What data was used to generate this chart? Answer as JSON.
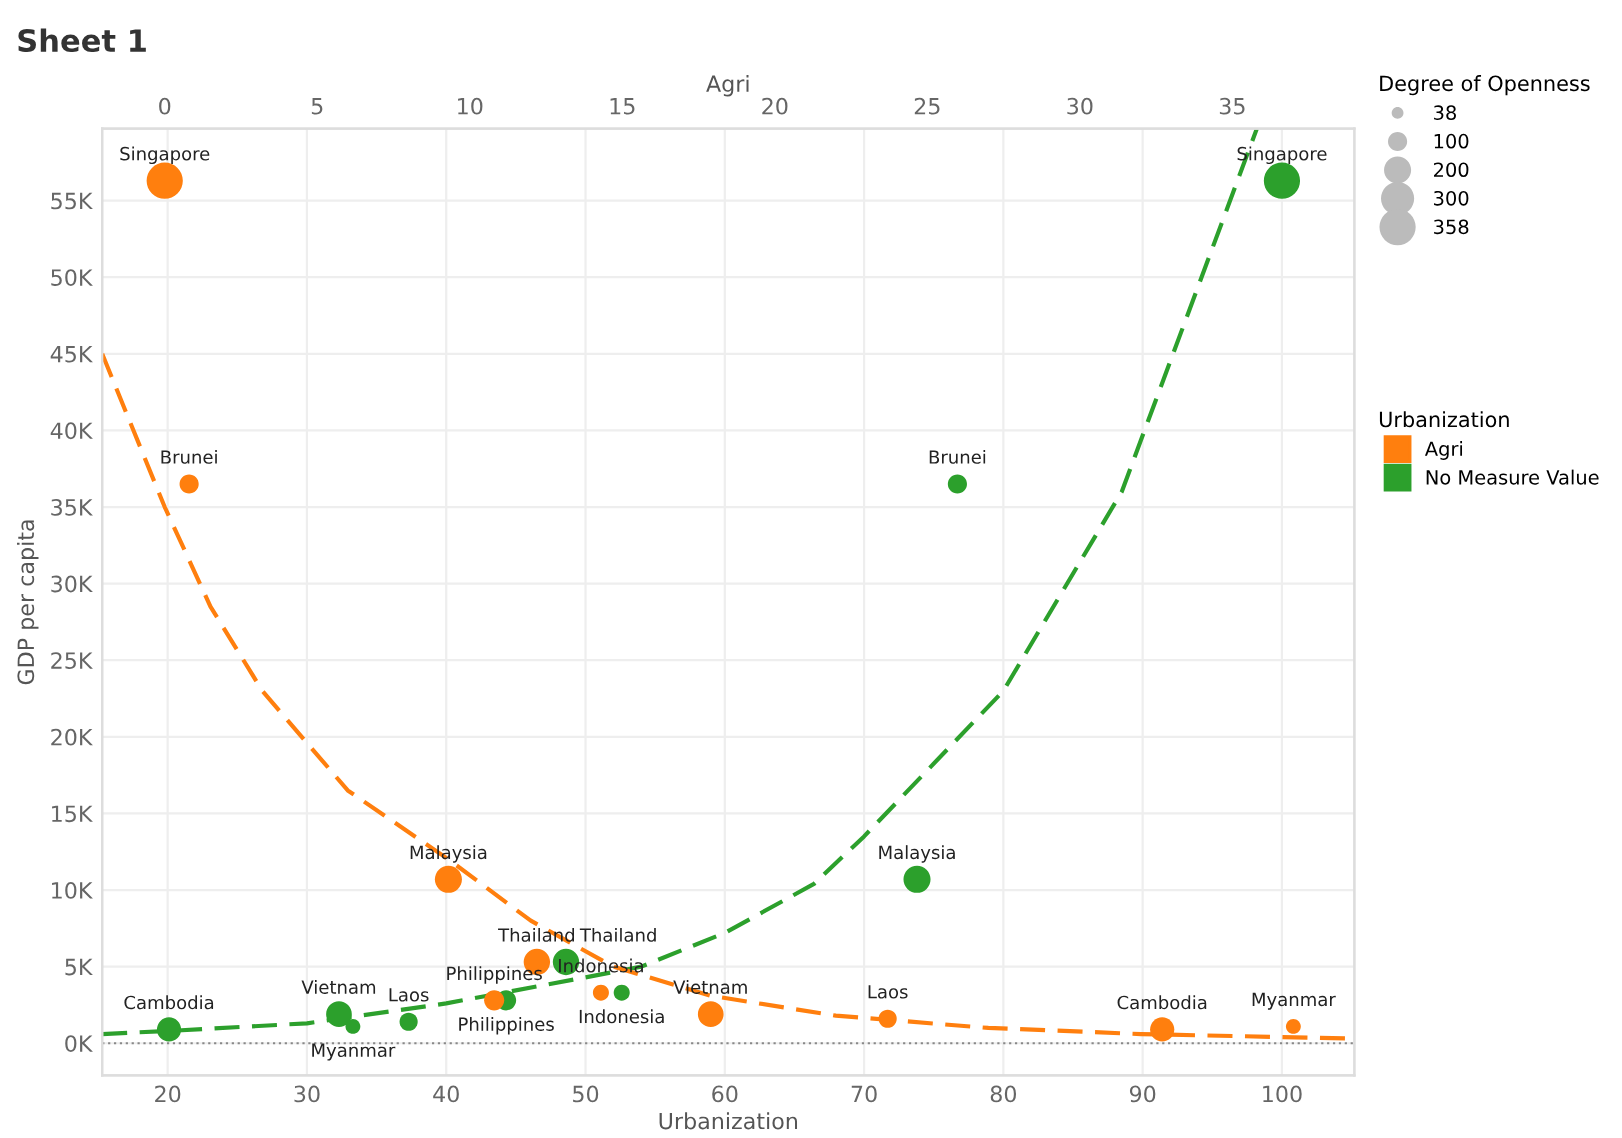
{
  "chart_data": {
    "type": "bubble",
    "title": "Sheet 1",
    "xlabel": "Urbanization",
    "x2label": "Agri",
    "ylabel": "GDP per capita",
    "legend_title": "Urbanization",
    "annotations": [
      "Degree of Openness"
    ],
    "xlim": [
      15.3,
      105.2
    ],
    "xticks": [
      20,
      30,
      40,
      50,
      60,
      70,
      80,
      90,
      100
    ],
    "x2lim": [
      -2.05,
      39
    ],
    "x2ticks": [
      0,
      5,
      10,
      15,
      20,
      25,
      30,
      35
    ],
    "ylim": [
      -2100,
      59700
    ],
    "yticks": [
      {
        "value": 0,
        "label": "0K"
      },
      {
        "value": 5000,
        "label": "5K"
      },
      {
        "value": 10000,
        "label": "10K"
      },
      {
        "value": 15000,
        "label": "15K"
      },
      {
        "value": 20000,
        "label": "20K"
      },
      {
        "value": 25000,
        "label": "25K"
      },
      {
        "value": 30000,
        "label": "30K"
      },
      {
        "value": 35000,
        "label": "35K"
      },
      {
        "value": 40000,
        "label": "40K"
      },
      {
        "value": 45000,
        "label": "45K"
      },
      {
        "value": 50000,
        "label": "50K"
      },
      {
        "value": 55000,
        "label": "55K"
      }
    ],
    "size_legend": [
      38,
      100,
      200,
      300,
      358
    ],
    "grid": true,
    "legend": "right",
    "marker": "circle",
    "ref_lines": [
      {
        "axis": "y",
        "value": 0,
        "label": null,
        "color": "#888888",
        "line_style": "dotted"
      }
    ],
    "series": [
      {
        "name": "Agri",
        "color": "#ff7f0e",
        "axis": "x2",
        "x": [
          0,
          0.8,
          9.3,
          12.2,
          10.8,
          14.3,
          17.9,
          23.7,
          32.7,
          37.0
        ],
        "values": [
          56300,
          36500,
          10700,
          5300,
          2800,
          3300,
          1900,
          1600,
          900,
          1100
        ],
        "sizes": [
          358,
          100,
          200,
          190,
          110,
          70,
          180,
          90,
          160,
          60
        ],
        "value_labels": [
          "Singapore",
          "Brunei",
          "Malaysia",
          "Thailand",
          "Philippines",
          "Indonesia",
          "Vietnam",
          "Laos",
          "Cambodia",
          "Myanmar"
        ]
      },
      {
        "name": "No Measure Value",
        "color": "#2ca02c",
        "x": [
          100,
          76.7,
          73.8,
          48.6,
          44.3,
          52.6,
          32.3,
          37.3,
          20.1,
          33.3
        ],
        "values": [
          56300,
          36500,
          10700,
          5300,
          2800,
          3300,
          1900,
          1400,
          900,
          1100
        ],
        "sizes": [
          358,
          100,
          200,
          190,
          110,
          70,
          180,
          90,
          160,
          60
        ],
        "value_labels": [
          "Singapore",
          "Brunei",
          "Malaysia",
          "Thailand",
          "Philippines",
          "Indonesia",
          "Vietnam",
          "Laos",
          "Cambodia",
          "Myanmar"
        ]
      },
      {
        "type": "line",
        "color": "#ff7f0e",
        "axis": "x2",
        "line_style": "dashed",
        "marker": "none",
        "x": [
          -2.05,
          0,
          1.5,
          3.2,
          6,
          9.3,
          12,
          14.7,
          17.9,
          22,
          27,
          32,
          39
        ],
        "values": [
          45000,
          35000,
          28500,
          23000,
          16500,
          12000,
          8000,
          5000,
          3100,
          1800,
          1000,
          600,
          300
        ]
      },
      {
        "type": "line",
        "color": "#2ca02c",
        "line_style": "dashed",
        "marker": "none",
        "x": [
          15.3,
          20,
          30,
          40,
          50,
          54,
          60,
          66.4,
          70,
          80,
          88.5,
          98.2
        ],
        "values": [
          600,
          800,
          1300,
          2600,
          4300,
          5000,
          7200,
          10400,
          13500,
          23000,
          36000,
          59700
        ]
      }
    ]
  }
}
